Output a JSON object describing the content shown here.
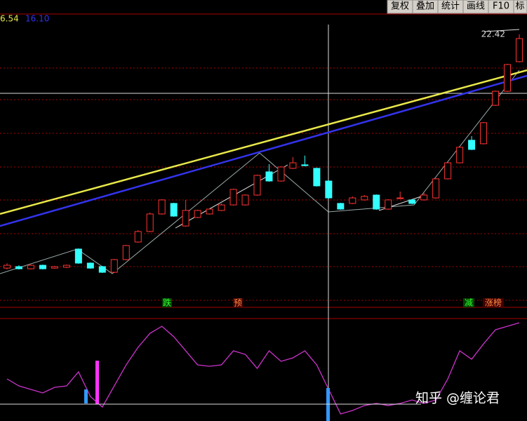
{
  "toolbar": [
    "复权",
    "叠加",
    "统计",
    "画线",
    "F10",
    "标"
  ],
  "signals": [
    "跌",
    "预",
    "减",
    "涨榜"
  ],
  "watermark": "知乎 @缠论君",
  "chart_data": {
    "type": "candlestick",
    "ylim": [
      6,
      23
    ],
    "high_label": "22.42",
    "up_color": "#ff3333",
    "down_color": "#33ffff",
    "open": [
      8.43,
      8.52,
      8.39,
      8.6,
      8.43,
      8.48,
      9.57,
      8.73,
      8.52,
      8.18,
      8.94,
      9.99,
      10.62,
      11.67,
      12.3,
      10.95,
      11.46,
      11.67,
      11.88,
      12.21,
      12.21,
      12.8,
      14.19,
      13.64,
      14.4,
      14.61,
      14.4,
      13.64,
      12.3,
      12.3,
      12.51,
      12.8,
      11.96,
      12.63,
      12.51,
      12.51,
      12.63,
      13.77,
      14.73,
      16.08,
      15.87,
      18.17,
      19.01,
      20.78
    ],
    "close": [
      8.6,
      8.39,
      8.6,
      8.39,
      8.52,
      8.6,
      8.73,
      8.43,
      8.18,
      8.94,
      9.78,
      10.62,
      11.67,
      12.51,
      11.54,
      11.88,
      11.88,
      11.96,
      12.21,
      13.14,
      12.8,
      13.98,
      13.64,
      14.48,
      14.73,
      14.56,
      13.35,
      12.63,
      11.96,
      12.63,
      12.72,
      11.96,
      12.51,
      12.63,
      12.3,
      12.8,
      13.77,
      14.73,
      15.66,
      15.53,
      17.13,
      19.01,
      20.61,
      22.16
    ],
    "high": [
      8.72,
      8.6,
      8.64,
      8.64,
      8.56,
      8.64,
      9.61,
      8.77,
      8.56,
      8.98,
      9.82,
      10.7,
      11.75,
      12.55,
      12.34,
      12.51,
      11.92,
      12.0,
      12.3,
      13.18,
      12.84,
      14.02,
      14.65,
      14.52,
      15.07,
      15.16,
      14.44,
      13.68,
      12.34,
      12.72,
      12.8,
      12.84,
      12.55,
      13.01,
      12.55,
      12.93,
      13.81,
      14.77,
      15.7,
      16.33,
      17.17,
      19.05,
      20.65,
      22.42
    ],
    "low": [
      8.35,
      8.35,
      8.35,
      8.35,
      8.39,
      8.43,
      8.69,
      8.39,
      8.14,
      8.14,
      8.9,
      9.95,
      10.58,
      11.63,
      11.5,
      10.91,
      11.42,
      11.63,
      11.84,
      12.17,
      12.17,
      12.76,
      13.6,
      13.6,
      14.36,
      14.52,
      13.31,
      12.59,
      11.92,
      12.26,
      12.47,
      11.92,
      11.92,
      12.59,
      12.26,
      12.47,
      12.59,
      13.73,
      14.69,
      15.49,
      15.83,
      18.13,
      18.97,
      20.74
    ],
    "ma": [
      {
        "label": "6.54",
        "color": "#e8e84a",
        "values": [
          11.67,
          20.27
        ]
      },
      {
        "label": "16.10",
        "color": "#3333ee",
        "values": [
          10.95,
          19.94
        ]
      }
    ],
    "indicator": {
      "color": "#cc33cc",
      "ylim": [
        0,
        100
      ],
      "values": [
        40,
        33.3,
        30,
        26.7,
        32,
        33.3,
        46.7,
        23.3,
        13.3,
        33.3,
        53.3,
        70,
        83.3,
        90,
        80,
        66.7,
        53.3,
        52,
        53.3,
        66.7,
        63.3,
        50,
        66.7,
        56.7,
        60,
        66.7,
        53.3,
        30,
        6.7,
        10,
        14.7,
        16.7,
        14.7,
        16.7,
        20,
        16.7,
        20,
        40,
        66.7,
        58.7,
        73.3,
        86.7,
        90,
        93.3
      ]
    }
  }
}
